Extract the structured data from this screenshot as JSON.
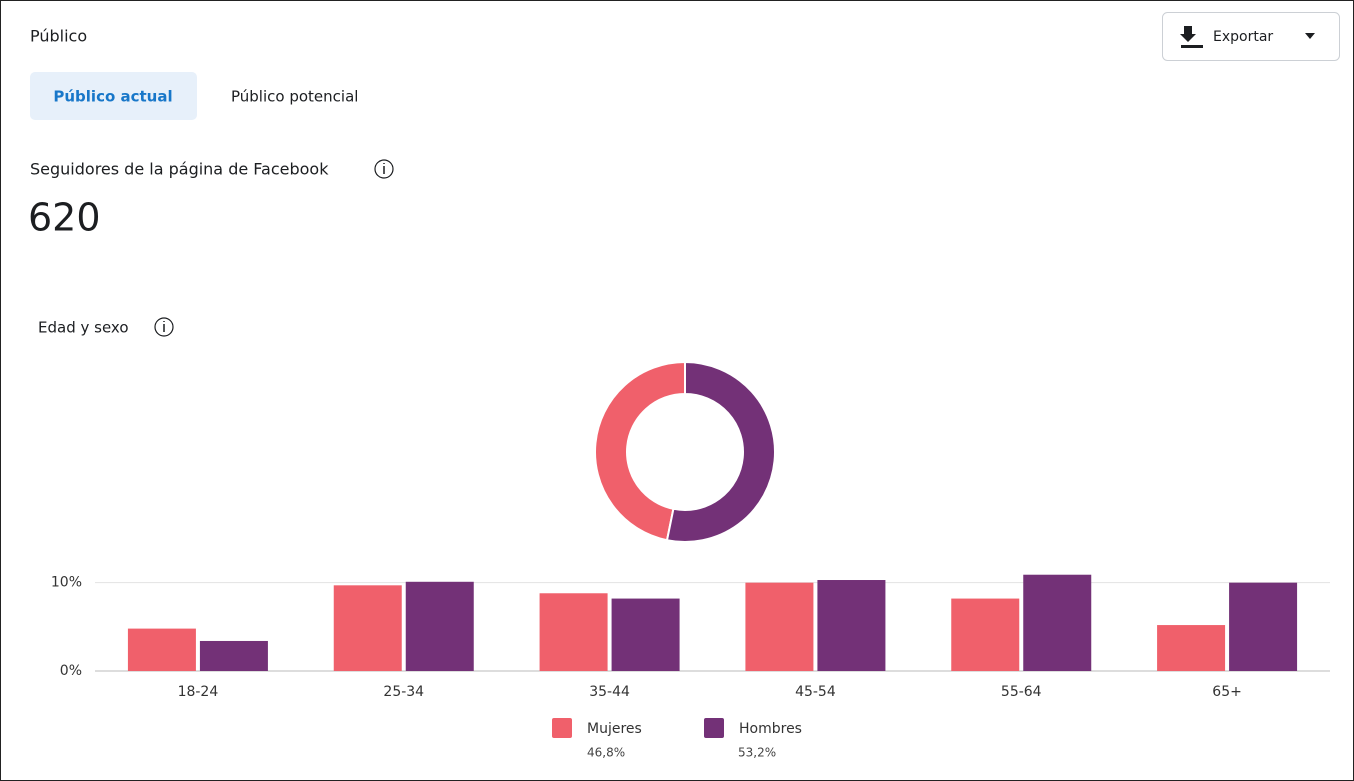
{
  "header": {
    "title": "Público",
    "export_button": "Exportar"
  },
  "tabs": [
    "Público actual",
    "Público potencial"
  ],
  "followers": {
    "label": "Seguidores de la página de Facebook",
    "value": 620
  },
  "chart_data": [
    {
      "type": "pie",
      "categories": [
        "Mujeres",
        "Hombres"
      ],
      "values": [
        46.8,
        53.2
      ],
      "value_labels": [
        "46,8%",
        "53,2%"
      ],
      "colors": [
        "#f0606b",
        "#733177"
      ]
    },
    {
      "type": "bar",
      "title": "Edad y sexo",
      "categories": [
        "18-24",
        "25-34",
        "35-44",
        "45-54",
        "55-64",
        "65+"
      ],
      "series": [
        {
          "name": "Mujeres",
          "color": "#f0606b",
          "values": [
            4.8,
            9.7,
            8.8,
            10.0,
            8.2,
            5.2
          ]
        },
        {
          "name": "Hombres",
          "color": "#733177",
          "values": [
            3.4,
            10.1,
            8.2,
            10.3,
            10.9,
            10.0
          ]
        }
      ],
      "ylim": [
        0,
        12
      ],
      "yticks": [
        {
          "value": 0,
          "label": "0%"
        },
        {
          "value": 10,
          "label": "10%"
        }
      ],
      "grid": true
    }
  ]
}
